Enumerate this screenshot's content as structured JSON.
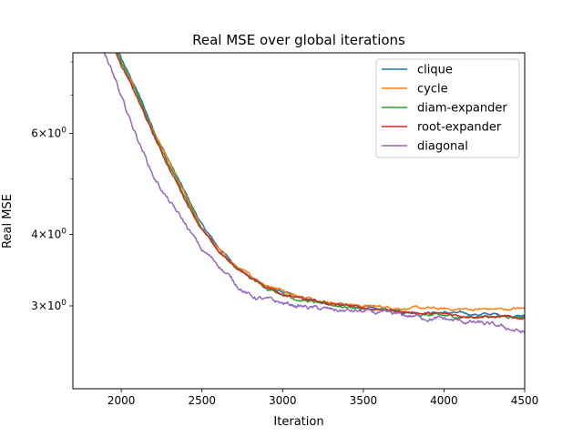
{
  "chart_data": {
    "type": "line",
    "title": "Real MSE over global iterations",
    "xlabel": "Iteration",
    "ylabel": "Real MSE",
    "xlim": [
      1700,
      4500
    ],
    "ylim": [
      2.15,
      8.3
    ],
    "yscale": "log",
    "grid": false,
    "legend": "top-right",
    "x_ticks": [
      {
        "value": 2000,
        "label": "2000"
      },
      {
        "value": 2500,
        "label": "2500"
      },
      {
        "value": 3000,
        "label": "3000"
      },
      {
        "value": 3500,
        "label": "3500"
      },
      {
        "value": 4000,
        "label": "4000"
      },
      {
        "value": 4500,
        "label": "4500"
      }
    ],
    "y_major_ticks": [
      {
        "value": 3,
        "base": "3",
        "label": "3×10⁰"
      },
      {
        "value": 4,
        "base": "4",
        "label": "4×10⁰"
      },
      {
        "value": 6,
        "base": "6",
        "label": "6×10⁰"
      }
    ],
    "y_minor_ticks": [
      5,
      7,
      8
    ],
    "series": [
      {
        "name": "clique",
        "color": "#1f77b4",
        "x": [
          1900,
          2000,
          2100,
          2200,
          2300,
          2400,
          2500,
          2600,
          2700,
          2800,
          2900,
          3000,
          3100,
          3200,
          3300,
          3400,
          3500,
          3600,
          3700,
          3800,
          3900,
          4000,
          4100,
          4200,
          4300,
          4400,
          4500
        ],
        "y": [
          9.6,
          8.1,
          7.1,
          6.1,
          5.35,
          4.7,
          4.15,
          3.8,
          3.55,
          3.37,
          3.25,
          3.17,
          3.1,
          3.06,
          3.03,
          3.0,
          2.98,
          2.96,
          2.94,
          2.93,
          2.92,
          2.92,
          2.91,
          2.9,
          2.9,
          2.89,
          2.88
        ]
      },
      {
        "name": "cycle",
        "color": "#ff7f0e",
        "x": [
          1900,
          2000,
          2100,
          2200,
          2300,
          2400,
          2500,
          2600,
          2700,
          2800,
          2900,
          3000,
          3100,
          3200,
          3300,
          3400,
          3500,
          3600,
          3700,
          3800,
          3900,
          4000,
          4100,
          4200,
          4300,
          4400,
          4500
        ],
        "y": [
          9.5,
          8.0,
          7.0,
          6.05,
          5.3,
          4.65,
          4.1,
          3.78,
          3.54,
          3.38,
          3.27,
          3.2,
          3.12,
          3.08,
          3.05,
          3.02,
          3.0,
          2.99,
          2.98,
          2.97,
          2.97,
          2.96,
          2.96,
          2.96,
          2.96,
          2.96,
          2.97
        ]
      },
      {
        "name": "diam-expander",
        "color": "#2ca02c",
        "x": [
          1900,
          2000,
          2100,
          2200,
          2300,
          2400,
          2500,
          2600,
          2700,
          2800,
          2900,
          3000,
          3100,
          3200,
          3300,
          3400,
          3500,
          3600,
          3700,
          3800,
          3900,
          4000,
          4100,
          4200,
          4300,
          4400,
          4500
        ],
        "y": [
          9.5,
          8.0,
          7.0,
          6.0,
          5.25,
          4.62,
          4.1,
          3.75,
          3.52,
          3.35,
          3.23,
          3.15,
          3.08,
          3.04,
          3.01,
          2.99,
          2.97,
          2.95,
          2.93,
          2.91,
          2.89,
          2.88,
          2.87,
          2.87,
          2.88,
          2.88,
          2.87
        ]
      },
      {
        "name": "root-expander",
        "color": "#d62728",
        "x": [
          1900,
          2000,
          2100,
          2200,
          2300,
          2400,
          2500,
          2600,
          2700,
          2800,
          2900,
          3000,
          3100,
          3200,
          3300,
          3400,
          3500,
          3600,
          3700,
          3800,
          3900,
          4000,
          4100,
          4200,
          4300,
          4400,
          4500
        ],
        "y": [
          9.4,
          7.9,
          6.9,
          5.95,
          5.2,
          4.58,
          4.08,
          3.74,
          3.52,
          3.36,
          3.24,
          3.16,
          3.09,
          3.05,
          3.02,
          3.0,
          2.98,
          2.96,
          2.94,
          2.92,
          2.91,
          2.9,
          2.89,
          2.88,
          2.87,
          2.86,
          2.86
        ]
      },
      {
        "name": "diagonal",
        "color": "#9467bd",
        "x": [
          1880,
          1950,
          2000,
          2100,
          2200,
          2300,
          2400,
          2500,
          2600,
          2700,
          2800,
          2900,
          3000,
          3100,
          3200,
          3300,
          3400,
          3500,
          3600,
          3700,
          3800,
          3900,
          4000,
          4100,
          4200,
          4300,
          4400,
          4500
        ],
        "y": [
          8.6,
          7.6,
          6.9,
          5.9,
          5.05,
          4.55,
          4.15,
          3.75,
          3.55,
          3.3,
          3.12,
          3.07,
          3.03,
          3.0,
          2.97,
          2.95,
          2.94,
          2.93,
          2.91,
          2.89,
          2.88,
          2.86,
          2.84,
          2.82,
          2.8,
          2.77,
          2.74,
          2.69
        ]
      }
    ]
  }
}
